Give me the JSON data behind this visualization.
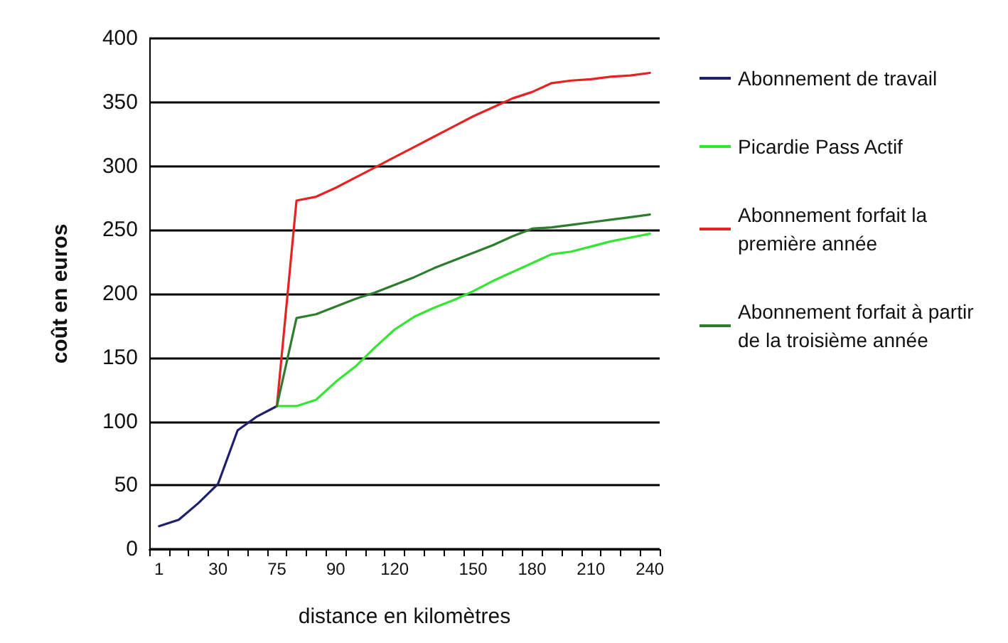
{
  "chart_data": {
    "type": "line",
    "xlabel": "distance en kilomètres",
    "ylabel": "coût en euros",
    "categories": [
      "1",
      null,
      null,
      "30",
      null,
      null,
      "75",
      null,
      null,
      "90",
      null,
      null,
      "120",
      null,
      null,
      null,
      "150",
      null,
      null,
      "180",
      null,
      null,
      "210",
      null,
      null,
      "240"
    ],
    "series": [
      {
        "name": "Abonnement de travail",
        "color": "#1f1f6e",
        "values": [
          18,
          23,
          36,
          51,
          93,
          104,
          112,
          null,
          null,
          null,
          null,
          null,
          null,
          null,
          null,
          null,
          null,
          null,
          null,
          null,
          null,
          null,
          null,
          null,
          null,
          null
        ]
      },
      {
        "name": "Picardie Pass Actif",
        "color": "#33e633",
        "values": [
          null,
          null,
          null,
          null,
          null,
          null,
          112,
          112,
          117,
          131,
          143,
          158,
          172,
          182,
          189,
          195,
          202,
          210,
          217,
          224,
          231,
          233,
          237,
          241,
          244,
          247
        ]
      },
      {
        "name": "Abonnement forfait la première année",
        "color": "#e62222",
        "values": [
          null,
          null,
          null,
          null,
          null,
          null,
          112,
          273,
          276,
          283,
          291,
          299,
          307,
          315,
          323,
          331,
          339,
          346,
          353,
          358,
          365,
          367,
          368,
          370,
          371,
          373
        ]
      },
      {
        "name": "Abonnement forfait à partir de la troisième année",
        "color": "#2e7d2e",
        "values": [
          null,
          null,
          null,
          null,
          null,
          null,
          112,
          181,
          184,
          190,
          196,
          201,
          207,
          213,
          220,
          226,
          232,
          238,
          245,
          251,
          252,
          254,
          256,
          258,
          260,
          262
        ]
      }
    ],
    "ylim": [
      0,
      400
    ],
    "yticks": [
      0,
      50,
      100,
      150,
      200,
      250,
      300,
      350,
      400
    ],
    "grid": "y",
    "legend": "right",
    "marker": "none",
    "line_style": "solid"
  }
}
